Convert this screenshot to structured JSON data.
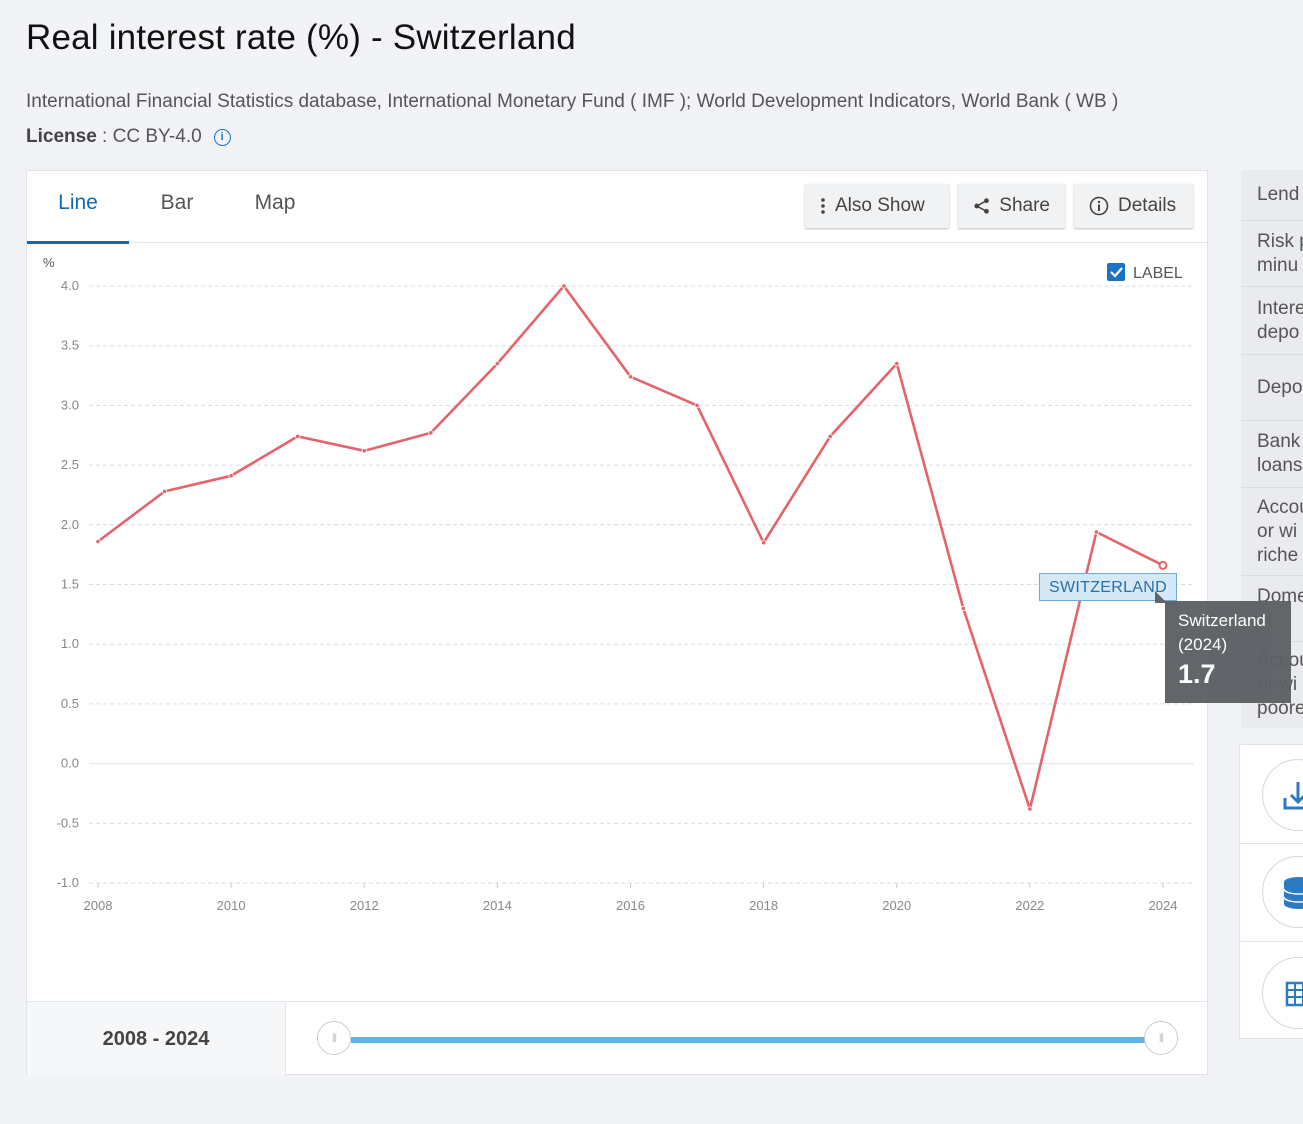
{
  "title": "Real interest rate (%) - Switzerland",
  "source": "International Financial Statistics database, International Monetary Fund ( IMF ); World Development Indicators, World Bank ( WB )",
  "license": {
    "label": "License",
    "separator": " : ",
    "value": "CC BY-4.0"
  },
  "tabs": [
    {
      "label": "Line",
      "active": true
    },
    {
      "label": "Bar",
      "active": false
    },
    {
      "label": "Map",
      "active": false
    }
  ],
  "toolbar": {
    "also_show": "Also Show",
    "share": "Share",
    "details": "Details"
  },
  "label_toggle": {
    "text": "LABEL",
    "checked": true
  },
  "range": {
    "text": "2008 - 2024"
  },
  "tooltip": {
    "country": "Switzerland",
    "year": "(2024)",
    "value": "1.7"
  },
  "series_label": "SWITZERLAND",
  "side_list": [
    {
      "lines": [
        "Lend"
      ]
    },
    {
      "lines": [
        "Risk p",
        "minu"
      ]
    },
    {
      "lines": [
        "Intere",
        "depo"
      ]
    },
    {
      "lines": [
        "Depo"
      ]
    },
    {
      "lines": [
        "Bank",
        "loans"
      ]
    },
    {
      "lines": [
        "Accou",
        "or wi",
        "riche"
      ]
    },
    {
      "lines": [
        "Dome",
        "of"
      ]
    },
    {
      "lines": [
        "Accou",
        "or wi",
        "poore"
      ]
    }
  ],
  "side_tools": [
    "download-icon",
    "database-icon",
    "table-icon"
  ],
  "colors": {
    "line": "#e5636a",
    "accent": "#0f6ab4",
    "slider": "#5db3e8"
  },
  "chart_data": {
    "type": "line",
    "ylabel": "%",
    "ylim": [
      -1.0,
      4.0
    ],
    "yticks": [
      "4.0",
      "3.5",
      "3.0",
      "2.5",
      "2.0",
      "1.5",
      "1.0",
      "0.5",
      "0.0",
      "-0.5",
      "-1.0"
    ],
    "xticks": [
      "2008",
      "2010",
      "2012",
      "2014",
      "2016",
      "2018",
      "2020",
      "2022",
      "2024"
    ],
    "grid": true,
    "series": [
      {
        "name": "SWITZERLAND",
        "x": [
          2008,
          2009,
          2010,
          2011,
          2012,
          2013,
          2014,
          2015,
          2016,
          2017,
          2018,
          2019,
          2020,
          2021,
          2022,
          2023,
          2024
        ],
        "values": [
          1.86,
          2.28,
          2.41,
          2.74,
          2.62,
          2.77,
          3.35,
          4.0,
          3.24,
          3.0,
          1.85,
          2.74,
          3.35,
          1.3,
          -0.38,
          1.94,
          1.66
        ]
      }
    ]
  }
}
